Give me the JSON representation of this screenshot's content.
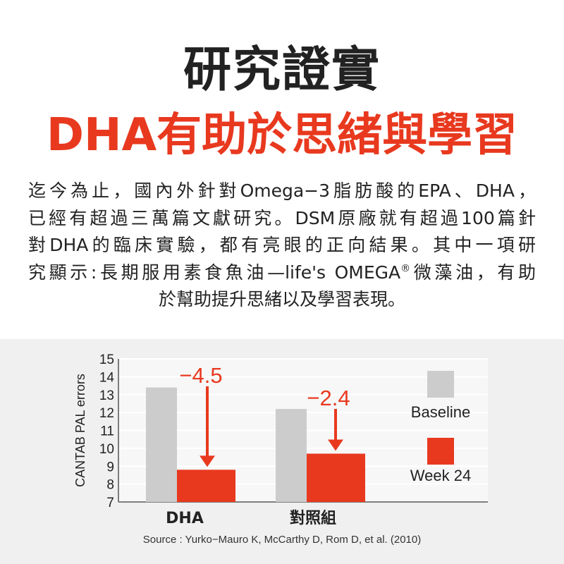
{
  "header": {
    "title": "研究證實",
    "subtitle": "DHA有助於思緒與學習"
  },
  "intro": {
    "lines": [
      "迄今為止，國內外針對Omega−3脂肪酸的EPA、DHA，",
      "已經有超過三萬篇文獻研究。DSM原廠就有超過100篇針",
      "對DHA的臨床實驗，都有亮眼的正向結果。其中一項研",
      "究顯示:長期服用素食魚油—life's OMEGA",
      "於幫助提升思緒以及學習表現。"
    ],
    "registered_mark": "®",
    "line4_tail": "微藻油，有助"
  },
  "chart_data": {
    "type": "bar",
    "categories": [
      "DHA",
      "對照組"
    ],
    "series": [
      {
        "name": "Baseline",
        "values": [
          13.4,
          12.2
        ],
        "color": "#cccccc"
      },
      {
        "name": "Week 24",
        "values": [
          8.8,
          9.7
        ],
        "color": "#e8391f"
      }
    ],
    "change_labels": [
      "−4.5",
      "−2.4"
    ],
    "ylabel": "CANTAB PAL errors",
    "ylim": [
      7,
      15
    ],
    "yticks": [
      7,
      8,
      9,
      10,
      11,
      12,
      13,
      14,
      15
    ],
    "grid": true,
    "legend_position": "right"
  },
  "source": "Source : Yurko−Mauro K, McCarthy D, Rom D, et al. (2010)"
}
